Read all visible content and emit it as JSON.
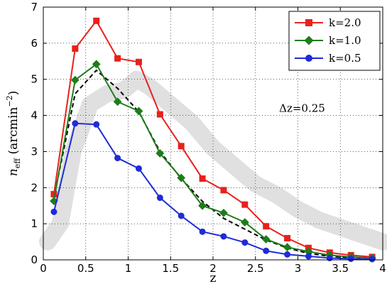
{
  "chart_data": {
    "type": "line",
    "xlabel": "z",
    "ylabel_base": "n",
    "ylabel_sub": "eff",
    "ylabel_rest": " (arcmin",
    "ylabel_exp": "−2",
    "ylabel_close": ")",
    "xlim": [
      0,
      4
    ],
    "ylim": [
      0,
      7
    ],
    "x_ticks": [
      0,
      0.5,
      1,
      1.5,
      2,
      2.5,
      3,
      3.5,
      4
    ],
    "x_tick_labels": [
      "0",
      "0.5",
      "1",
      "1.5",
      "2",
      "2.5",
      "3",
      "3.5",
      "4"
    ],
    "y_ticks": [
      0,
      1,
      2,
      3,
      4,
      5,
      6,
      7
    ],
    "y_tick_labels": [
      "0",
      "1",
      "2",
      "3",
      "4",
      "5",
      "6",
      "7"
    ],
    "grid": true,
    "legend_position": "top-right",
    "annotation": "Δz=0.25",
    "series": [
      {
        "name": "k=2.0",
        "color": "#e8211d",
        "marker": "square",
        "x": [
          0.125,
          0.375,
          0.625,
          0.875,
          1.125,
          1.375,
          1.625,
          1.875,
          2.125,
          2.375,
          2.625,
          2.875,
          3.125,
          3.375,
          3.625,
          3.875
        ],
        "y": [
          1.82,
          5.85,
          6.62,
          5.58,
          5.48,
          4.03,
          3.15,
          2.25,
          1.93,
          1.53,
          0.93,
          0.6,
          0.33,
          0.2,
          0.13,
          0.08
        ]
      },
      {
        "name": "k=1.0",
        "color": "#1e7d1a",
        "marker": "diamond",
        "x": [
          0.125,
          0.375,
          0.625,
          0.875,
          1.125,
          1.375,
          1.625,
          1.875,
          2.125,
          2.375,
          2.625,
          2.875,
          3.125,
          3.375,
          3.625,
          3.875
        ],
        "y": [
          1.63,
          4.98,
          5.42,
          4.38,
          4.12,
          2.95,
          2.27,
          1.5,
          1.3,
          1.04,
          0.57,
          0.35,
          0.23,
          0.13,
          0.08,
          0.05
        ]
      },
      {
        "name": "k=0.5",
        "color": "#1f2bd8",
        "marker": "circle",
        "x": [
          0.125,
          0.375,
          0.625,
          0.875,
          1.125,
          1.375,
          1.625,
          1.875,
          2.125,
          2.375,
          2.625,
          2.875,
          3.125,
          3.375,
          3.625,
          3.875
        ],
        "y": [
          1.33,
          3.78,
          3.75,
          2.82,
          2.53,
          1.72,
          1.22,
          0.78,
          0.65,
          0.48,
          0.25,
          0.15,
          0.1,
          0.05,
          0.03,
          0.02
        ]
      }
    ],
    "dashed_curve": {
      "color": "#000000",
      "x": [
        0.125,
        0.375,
        0.625,
        0.875,
        1.125,
        1.375,
        1.625,
        1.875,
        2.125,
        2.375,
        2.625,
        2.875,
        3.125,
        3.375,
        3.625,
        3.875
      ],
      "y": [
        1.72,
        4.6,
        5.25,
        4.75,
        4.1,
        3.0,
        2.25,
        1.62,
        1.15,
        0.85,
        0.55,
        0.33,
        0.18,
        0.1,
        0.06,
        0.04
      ]
    },
    "band_curve": {
      "color": "#e0e0e0",
      "x": [
        0.05,
        0.2,
        0.35,
        0.55,
        0.75,
        0.95,
        1.1,
        1.25,
        1.5,
        1.75,
        2.0,
        2.25,
        2.5,
        2.75,
        3.0,
        3.25,
        3.5,
        3.75,
        4.0
      ],
      "y": [
        0.5,
        1.0,
        3.0,
        4.3,
        4.6,
        4.7,
        5.0,
        4.8,
        4.3,
        3.8,
        3.1,
        2.6,
        2.1,
        1.8,
        1.4,
        1.1,
        0.9,
        0.7,
        0.5
      ]
    }
  }
}
